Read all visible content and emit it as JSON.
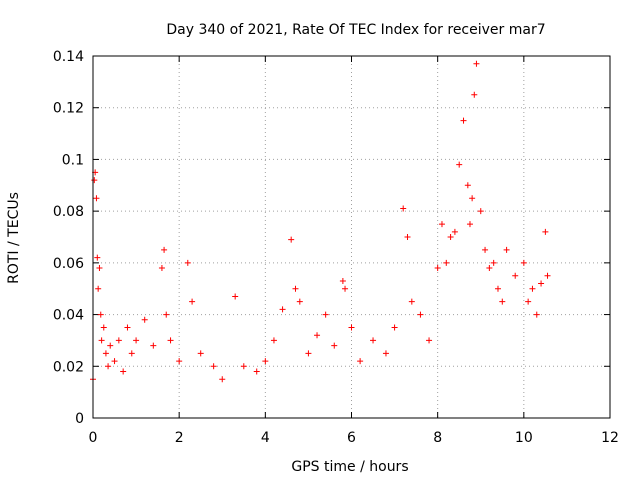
{
  "chart_data": {
    "type": "scatter",
    "title": "Day 340 of 2021, Rate Of TEC Index for receiver mar7",
    "xlabel": "GPS time / hours",
    "ylabel": "ROTI / TECUs",
    "xlim": [
      0,
      12
    ],
    "ylim": [
      0,
      0.14
    ],
    "xticks": [
      0,
      2,
      4,
      6,
      8,
      10,
      12
    ],
    "xtick_labels": [
      "0",
      "2",
      "4",
      "6",
      "8",
      "10",
      "12"
    ],
    "yticks": [
      0,
      0.02,
      0.04,
      0.06,
      0.08,
      0.1,
      0.12,
      0.14
    ],
    "ytick_labels": [
      "0",
      "0.02",
      "0.04",
      "0.06",
      "0.08",
      "0.1",
      "0.12",
      "0.14"
    ],
    "grid": true,
    "marker": "+",
    "color": "#ff0000",
    "series": [
      {
        "name": "ROTI",
        "x": [
          0.0,
          0.03,
          0.05,
          0.08,
          0.1,
          0.12,
          0.15,
          0.18,
          0.2,
          0.25,
          0.3,
          0.35,
          0.4,
          0.5,
          0.6,
          0.7,
          0.8,
          0.9,
          1.0,
          1.2,
          1.4,
          1.6,
          1.65,
          1.7,
          1.8,
          2.0,
          2.2,
          2.3,
          2.5,
          2.8,
          3.0,
          3.3,
          3.5,
          3.8,
          4.0,
          4.2,
          4.4,
          4.6,
          4.7,
          4.8,
          5.0,
          5.2,
          5.4,
          5.6,
          5.8,
          5.85,
          6.0,
          6.2,
          6.5,
          6.8,
          7.0,
          7.2,
          7.3,
          7.4,
          7.6,
          7.8,
          8.0,
          8.1,
          8.2,
          8.3,
          8.4,
          8.5,
          8.6,
          8.7,
          8.75,
          8.8,
          8.85,
          8.9,
          9.0,
          9.1,
          9.2,
          9.3,
          9.4,
          9.5,
          9.6,
          9.8,
          10.0,
          10.1,
          10.2,
          10.3,
          10.4,
          10.5,
          10.55
        ],
        "y": [
          0.015,
          0.092,
          0.095,
          0.085,
          0.062,
          0.05,
          0.058,
          0.04,
          0.03,
          0.035,
          0.025,
          0.02,
          0.028,
          0.022,
          0.03,
          0.018,
          0.035,
          0.025,
          0.03,
          0.038,
          0.028,
          0.058,
          0.065,
          0.04,
          0.03,
          0.022,
          0.06,
          0.045,
          0.025,
          0.02,
          0.015,
          0.047,
          0.02,
          0.018,
          0.022,
          0.03,
          0.042,
          0.069,
          0.05,
          0.045,
          0.025,
          0.032,
          0.04,
          0.028,
          0.053,
          0.05,
          0.035,
          0.022,
          0.03,
          0.025,
          0.035,
          0.081,
          0.07,
          0.045,
          0.04,
          0.03,
          0.058,
          0.075,
          0.06,
          0.07,
          0.072,
          0.098,
          0.115,
          0.09,
          0.075,
          0.085,
          0.125,
          0.137,
          0.08,
          0.065,
          0.058,
          0.06,
          0.05,
          0.045,
          0.065,
          0.055,
          0.06,
          0.045,
          0.05,
          0.04,
          0.052,
          0.072,
          0.055
        ]
      }
    ]
  }
}
